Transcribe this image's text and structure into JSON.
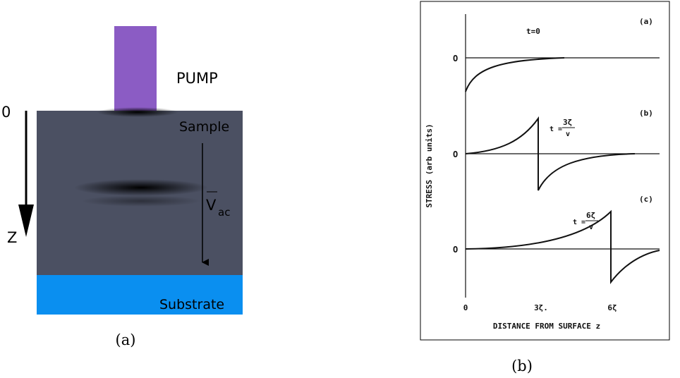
{
  "panel_a": {
    "pump_label": "PUMP",
    "origin_label": "0",
    "depth_label": "Z",
    "sample_label": "Sample",
    "velocity_label": "V",
    "velocity_subscript": "ac",
    "substrate_label": "Substrate",
    "caption": "(a)"
  },
  "panel_b": {
    "plots": [
      {
        "label": "(a)",
        "time": "t=0",
        "zero_label": "O"
      },
      {
        "label": "(b)",
        "time_prefix": "t =",
        "time_numerator": "3ζ",
        "time_denominator": "v",
        "zero_label": "O"
      },
      {
        "label": "(c)",
        "time_prefix": "t =",
        "time_numerator": "6ζ",
        "time_denominator": "v",
        "zero_label": "O"
      }
    ],
    "y_axis_label": "STRESS (arb units)",
    "x_axis_label": "DISTANCE FROM SURFACE z",
    "x_ticks": [
      "0",
      "3ζ.",
      "6ζ"
    ],
    "caption": "(b)"
  }
}
